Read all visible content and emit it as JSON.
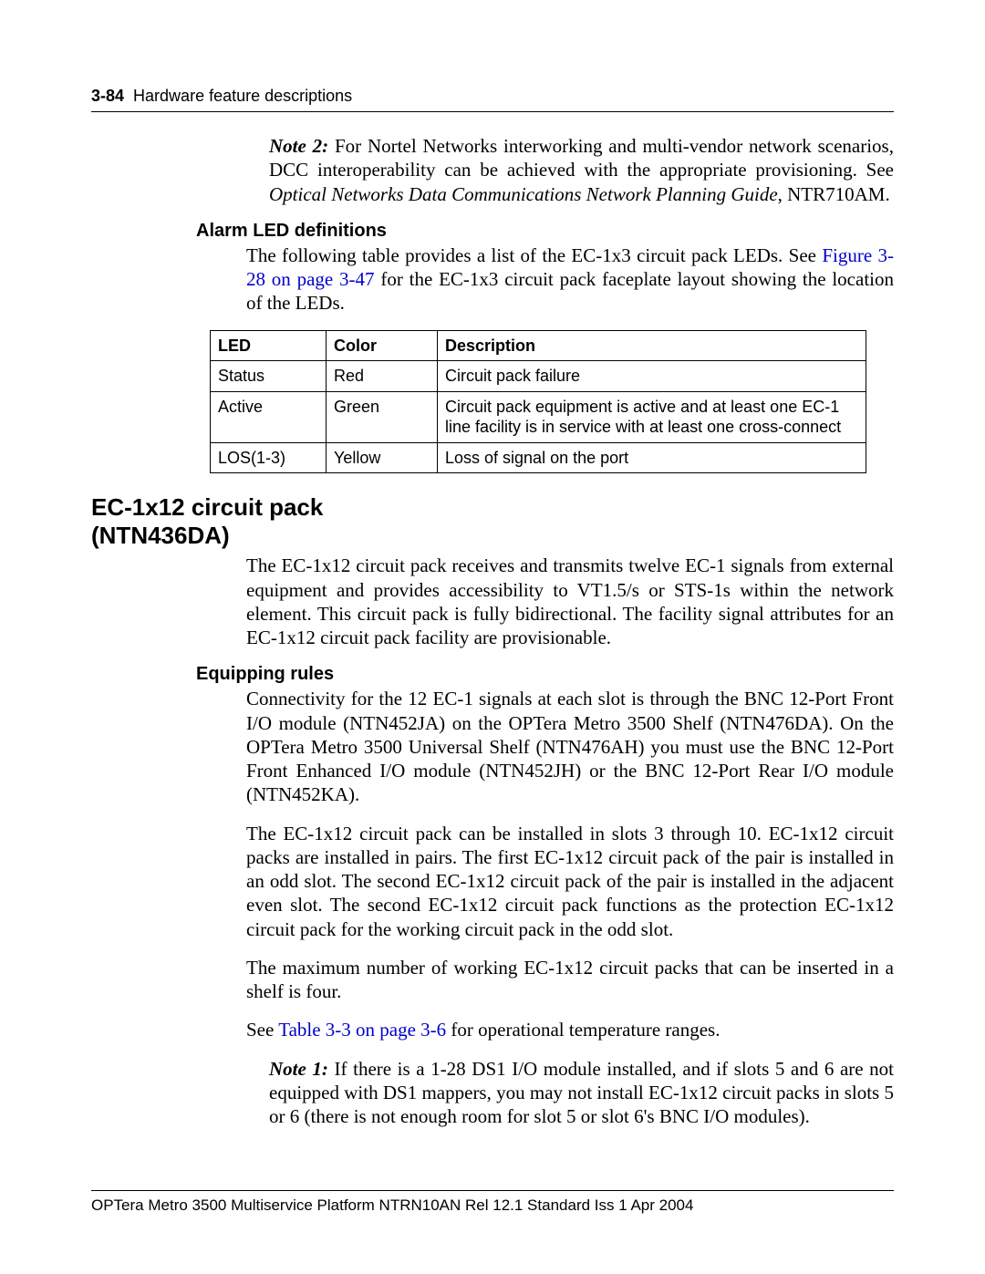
{
  "header": {
    "page_num": "3-84",
    "section": "Hardware feature descriptions"
  },
  "note2": {
    "label": "Note 2:",
    "text_a": "For Nortel Networks interworking and multi-vendor network scenarios, DCC interoperability can be achieved with the appropriate provisioning. See ",
    "ref": "Optical Networks Data Communications Network Planning Guide",
    "text_b": ", NTR710AM."
  },
  "alarm": {
    "heading": "Alarm LED definitions",
    "intro_a": "The following table provides a list of the EC-1x3 circuit pack LEDs. See ",
    "intro_link": "Figure 3-28 on page 3-47",
    "intro_b": " for the EC-1x3 circuit pack faceplate layout showing the location of the LEDs."
  },
  "led_table": {
    "headers": {
      "c1": "LED",
      "c2": "Color",
      "c3": "Description"
    },
    "rows": [
      {
        "c1": "Status",
        "c2": "Red",
        "c3": "Circuit pack failure"
      },
      {
        "c1": "Active",
        "c2": "Green",
        "c3": "Circuit pack equipment is active and at least one EC-1 line facility is in service with at least one cross-connect"
      },
      {
        "c1": "LOS(1-3)",
        "c2": "Yellow",
        "c3": "Loss of signal on the port"
      }
    ]
  },
  "ec1x12": {
    "heading_l1": "EC-1x12 circuit pack",
    "heading_l2": "(NTN436DA)",
    "intro": "The EC-1x12 circuit pack receives and transmits twelve EC-1 signals from external equipment and provides accessibility to VT1.5/s or STS-1s within the network element. This circuit pack is fully bidirectional. The facility signal attributes for an EC-1x12 circuit pack facility are provisionable."
  },
  "equipping": {
    "heading": "Equipping rules",
    "p1": "Connectivity for the 12 EC-1 signals at each slot is through the BNC 12-Port Front I/O module (NTN452JA) on the OPTera Metro 3500 Shelf (NTN476DA). On the OPTera Metro 3500 Universal Shelf (NTN476AH) you must use the BNC 12-Port Front Enhanced I/O module (NTN452JH) or the BNC 12-Port Rear I/O module (NTN452KA).",
    "p2": "The EC-1x12 circuit pack can be installed in slots 3 through 10. EC-1x12 circuit packs are installed in pairs. The first EC-1x12 circuit pack of the pair is installed in an odd slot. The second EC-1x12 circuit pack of the pair is installed in the adjacent even slot. The second EC-1x12 circuit pack functions as the protection EC-1x12 circuit pack for the working circuit pack in the odd slot.",
    "p3": "The maximum number of working EC-1x12 circuit packs that can be inserted in a shelf is four.",
    "p4_a": "See ",
    "p4_link": "Table 3-3 on page 3-6",
    "p4_b": " for operational temperature ranges.",
    "note1_label": "Note 1:",
    "note1_text": "If there is a 1-28 DS1 I/O module installed, and if slots 5 and 6 are not equipped with DS1 mappers, you may not install EC-1x12 circuit packs in slots 5 or 6 (there is not enough room for slot 5 or slot 6's BNC I/O modules)."
  },
  "footer": {
    "text": "OPTera Metro 3500 Multiservice Platform    NTRN10AN    Rel 12.1   Standard   Iss 1   Apr 2004"
  }
}
